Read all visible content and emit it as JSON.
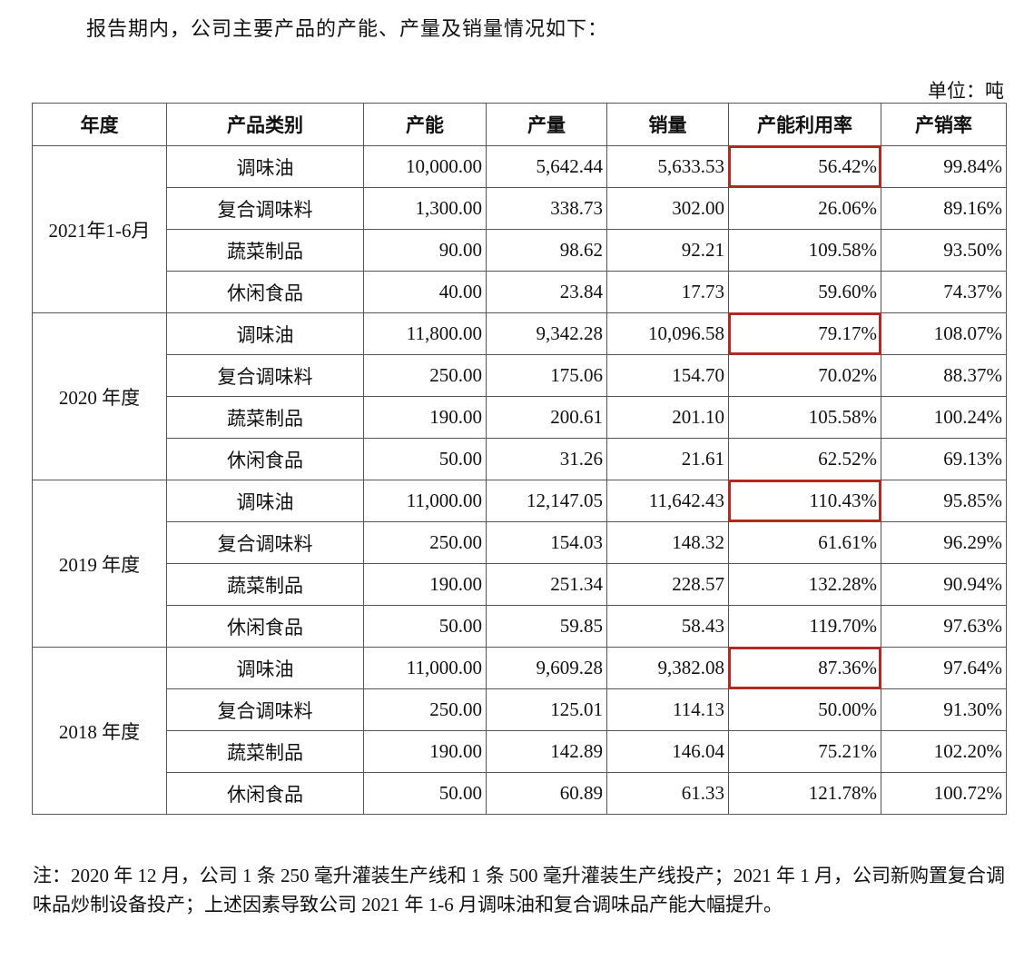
{
  "intro": "报告期内，公司主要产品的产能、产量及销量情况如下：",
  "unit": "单位：吨",
  "headers": [
    "年度",
    "产品类别",
    "产能",
    "产量",
    "销量",
    "产能利用率",
    "产销率"
  ],
  "highlight_color": "#b02a24",
  "groups": [
    {
      "period": "2021年1-6月",
      "rows": [
        [
          "调味油",
          "10,000.00",
          "5,642.44",
          "5,633.53",
          "56.42%",
          "99.84%"
        ],
        [
          "复合调味料",
          "1,300.00",
          "338.73",
          "302.00",
          "26.06%",
          "89.16%"
        ],
        [
          "蔬菜制品",
          "90.00",
          "98.62",
          "92.21",
          "109.58%",
          "93.50%"
        ],
        [
          "休闲食品",
          "40.00",
          "23.84",
          "17.73",
          "59.60%",
          "74.37%"
        ]
      ]
    },
    {
      "period": "2020 年度",
      "rows": [
        [
          "调味油",
          "11,800.00",
          "9,342.28",
          "10,096.58",
          "79.17%",
          "108.07%"
        ],
        [
          "复合调味料",
          "250.00",
          "175.06",
          "154.70",
          "70.02%",
          "88.37%"
        ],
        [
          "蔬菜制品",
          "190.00",
          "200.61",
          "201.10",
          "105.58%",
          "100.24%"
        ],
        [
          "休闲食品",
          "50.00",
          "31.26",
          "21.61",
          "62.52%",
          "69.13%"
        ]
      ]
    },
    {
      "period": "2019 年度",
      "rows": [
        [
          "调味油",
          "11,000.00",
          "12,147.05",
          "11,642.43",
          "110.43%",
          "95.85%"
        ],
        [
          "复合调味料",
          "250.00",
          "154.03",
          "148.32",
          "61.61%",
          "96.29%"
        ],
        [
          "蔬菜制品",
          "190.00",
          "251.34",
          "228.57",
          "132.28%",
          "90.94%"
        ],
        [
          "休闲食品",
          "50.00",
          "59.85",
          "58.43",
          "119.70%",
          "97.63%"
        ]
      ]
    },
    {
      "period": "2018 年度",
      "rows": [
        [
          "调味油",
          "11,000.00",
          "9,609.28",
          "9,382.08",
          "87.36%",
          "97.64%"
        ],
        [
          "复合调味料",
          "250.00",
          "125.01",
          "114.13",
          "50.00%",
          "91.30%"
        ],
        [
          "蔬菜制品",
          "190.00",
          "142.89",
          "146.04",
          "75.21%",
          "102.20%"
        ],
        [
          "休闲食品",
          "50.00",
          "60.89",
          "61.33",
          "121.78%",
          "100.72%"
        ]
      ]
    }
  ],
  "note": "注：2020 年 12 月，公司 1 条 250 毫升灌装生产线和 1 条 500 毫升灌装生产线投产；2021 年 1 月，公司新购置复合调味品炒制设备投产；上述因素导致公司 2021 年 1-6 月调味油和复合调味品产能大幅提升。"
}
